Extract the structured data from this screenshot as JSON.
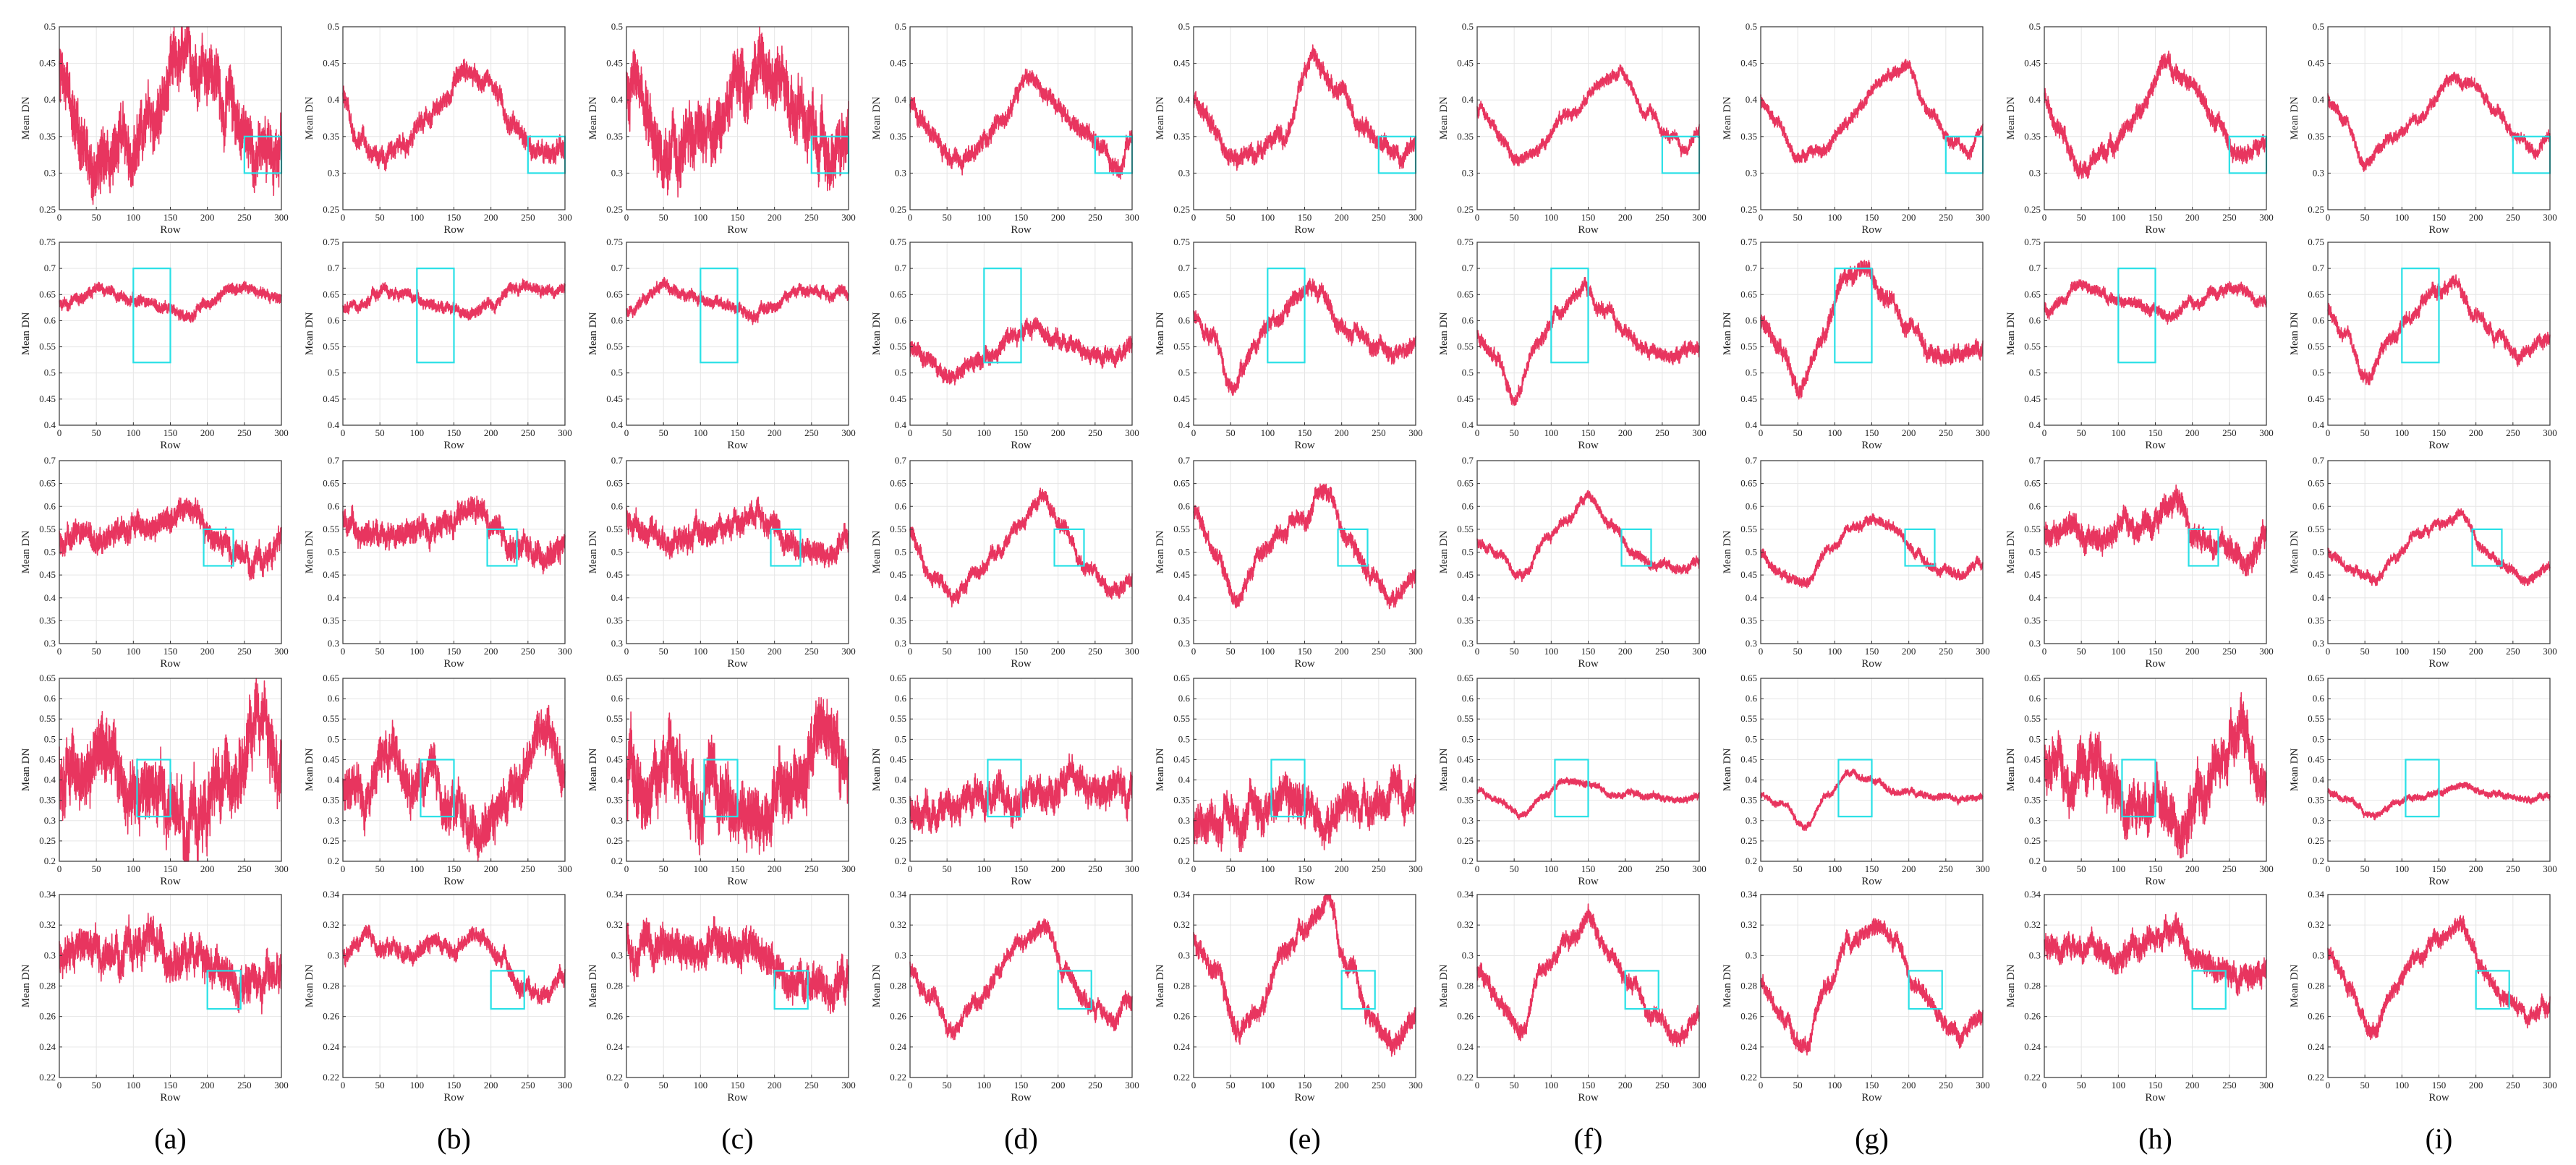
{
  "figure": {
    "columns": [
      "(a)",
      "(b)",
      "(c)",
      "(d)",
      "(e)",
      "(f)",
      "(g)",
      "(h)",
      "(i)"
    ],
    "line_color": "#e8355f",
    "box_color": "#29e0e6"
  },
  "chart_data": {
    "type": "line",
    "xlabel": "Row",
    "ylabel": "Mean DN",
    "xlim": [
      0,
      300
    ],
    "xticks": [
      0,
      50,
      100,
      150,
      200,
      250,
      300
    ],
    "grid": true,
    "rows": [
      {
        "ylim": [
          0.25,
          0.5
        ],
        "yticks": [
          0.25,
          0.3,
          0.35,
          0.4,
          0.45,
          0.5
        ],
        "box": {
          "x": [
            250,
            300
          ],
          "y": [
            0.3,
            0.35
          ]
        },
        "key_x": [
          0,
          20,
          50,
          80,
          120,
          165,
          195,
          230,
          260,
          280,
          300
        ],
        "base": [
          [
            0.43,
            0.37,
            0.31,
            0.33,
            0.36,
            0.44,
            0.46,
            0.39,
            0.34,
            0.32,
            0.34
          ],
          [
            0.4,
            0.35,
            0.31,
            0.34,
            0.38,
            0.44,
            0.43,
            0.37,
            0.33,
            0.32,
            0.34
          ],
          [
            0.41,
            0.37,
            0.31,
            0.33,
            0.37,
            0.44,
            0.46,
            0.39,
            0.34,
            0.32,
            0.34
          ],
          [
            0.39,
            0.37,
            0.33,
            0.32,
            0.37,
            0.43,
            0.4,
            0.36,
            0.33,
            0.31,
            0.35
          ],
          [
            0.4,
            0.37,
            0.32,
            0.33,
            0.35,
            0.46,
            0.42,
            0.36,
            0.33,
            0.32,
            0.35
          ],
          [
            0.39,
            0.37,
            0.32,
            0.33,
            0.38,
            0.42,
            0.44,
            0.38,
            0.35,
            0.33,
            0.36
          ],
          [
            0.4,
            0.37,
            0.32,
            0.33,
            0.37,
            0.43,
            0.45,
            0.38,
            0.34,
            0.33,
            0.36
          ],
          [
            0.4,
            0.37,
            0.3,
            0.33,
            0.37,
            0.45,
            0.43,
            0.37,
            0.33,
            0.32,
            0.35
          ],
          [
            0.4,
            0.38,
            0.31,
            0.35,
            0.37,
            0.43,
            0.42,
            0.38,
            0.35,
            0.33,
            0.35
          ]
        ],
        "noise": [
          0.03,
          0.01,
          0.03,
          0.009,
          0.009,
          0.006,
          0.006,
          0.009,
          0.006
        ]
      },
      {
        "ylim": [
          0.4,
          0.75
        ],
        "yticks": [
          0.4,
          0.45,
          0.5,
          0.55,
          0.6,
          0.65,
          0.7,
          0.75
        ],
        "box": {
          "x": [
            100,
            150
          ],
          "y": [
            0.52,
            0.7
          ]
        },
        "key_x": [
          0,
          25,
          50,
          80,
          110,
          140,
          170,
          200,
          230,
          260,
          300
        ],
        "base": [
          [
            0.63,
            0.64,
            0.66,
            0.65,
            0.64,
            0.63,
            0.61,
            0.63,
            0.66,
            0.66,
            0.64
          ],
          [
            0.62,
            0.63,
            0.66,
            0.65,
            0.64,
            0.62,
            0.61,
            0.63,
            0.66,
            0.66,
            0.65
          ],
          [
            0.62,
            0.64,
            0.67,
            0.65,
            0.64,
            0.63,
            0.61,
            0.63,
            0.66,
            0.66,
            0.65
          ],
          [
            0.55,
            0.53,
            0.49,
            0.51,
            0.54,
            0.57,
            0.59,
            0.56,
            0.55,
            0.53,
            0.54
          ],
          [
            0.61,
            0.57,
            0.47,
            0.55,
            0.6,
            0.65,
            0.66,
            0.59,
            0.57,
            0.54,
            0.55
          ],
          [
            0.57,
            0.53,
            0.46,
            0.55,
            0.62,
            0.66,
            0.62,
            0.58,
            0.54,
            0.53,
            0.55
          ],
          [
            0.6,
            0.55,
            0.46,
            0.56,
            0.68,
            0.7,
            0.64,
            0.59,
            0.55,
            0.53,
            0.55
          ],
          [
            0.62,
            0.64,
            0.67,
            0.65,
            0.64,
            0.62,
            0.61,
            0.63,
            0.66,
            0.66,
            0.64
          ],
          [
            0.62,
            0.57,
            0.49,
            0.56,
            0.6,
            0.65,
            0.68,
            0.61,
            0.57,
            0.53,
            0.57
          ]
        ],
        "noise": [
          0.008,
          0.008,
          0.008,
          0.012,
          0.012,
          0.01,
          0.012,
          0.008,
          0.01
        ]
      },
      {
        "ylim": [
          0.3,
          0.7
        ],
        "yticks": [
          0.3,
          0.35,
          0.4,
          0.45,
          0.5,
          0.55,
          0.6,
          0.65,
          0.7
        ],
        "box": {
          "x": [
            195,
            235
          ],
          "y": [
            0.47,
            0.55
          ]
        },
        "key_x": [
          0,
          30,
          60,
          90,
          120,
          150,
          180,
          210,
          240,
          270,
          300
        ],
        "base": [
          [
            0.53,
            0.55,
            0.53,
            0.56,
            0.55,
            0.57,
            0.6,
            0.52,
            0.5,
            0.48,
            0.52
          ],
          [
            0.57,
            0.55,
            0.52,
            0.54,
            0.55,
            0.56,
            0.6,
            0.53,
            0.51,
            0.49,
            0.52
          ],
          [
            0.57,
            0.55,
            0.52,
            0.54,
            0.55,
            0.57,
            0.6,
            0.53,
            0.51,
            0.49,
            0.52
          ],
          [
            0.54,
            0.45,
            0.4,
            0.46,
            0.5,
            0.57,
            0.62,
            0.54,
            0.46,
            0.42,
            0.44
          ],
          [
            0.58,
            0.5,
            0.39,
            0.5,
            0.55,
            0.58,
            0.64,
            0.52,
            0.45,
            0.41,
            0.44
          ],
          [
            0.52,
            0.5,
            0.44,
            0.52,
            0.57,
            0.62,
            0.56,
            0.5,
            0.47,
            0.46,
            0.48
          ],
          [
            0.5,
            0.45,
            0.43,
            0.5,
            0.55,
            0.58,
            0.55,
            0.5,
            0.46,
            0.45,
            0.48
          ],
          [
            0.54,
            0.56,
            0.52,
            0.54,
            0.56,
            0.58,
            0.61,
            0.54,
            0.51,
            0.49,
            0.53
          ],
          [
            0.5,
            0.46,
            0.44,
            0.49,
            0.54,
            0.56,
            0.58,
            0.51,
            0.47,
            0.44,
            0.47
          ]
        ],
        "noise": [
          0.02,
          0.02,
          0.02,
          0.012,
          0.014,
          0.008,
          0.008,
          0.02,
          0.008
        ]
      },
      {
        "ylim": [
          0.2,
          0.65
        ],
        "yticks": [
          0.2,
          0.25,
          0.3,
          0.35,
          0.4,
          0.45,
          0.5,
          0.55,
          0.6,
          0.65
        ],
        "box": {
          "x": [
            105,
            150
          ],
          "y": [
            0.31,
            0.45
          ]
        },
        "key_x": [
          0,
          30,
          60,
          90,
          120,
          150,
          180,
          210,
          240,
          270,
          300
        ],
        "base": [
          [
            0.42,
            0.4,
            0.48,
            0.38,
            0.36,
            0.34,
            0.3,
            0.36,
            0.44,
            0.52,
            0.4
          ],
          [
            0.38,
            0.36,
            0.46,
            0.38,
            0.39,
            0.33,
            0.27,
            0.33,
            0.42,
            0.54,
            0.42
          ],
          [
            0.4,
            0.38,
            0.48,
            0.39,
            0.38,
            0.34,
            0.29,
            0.35,
            0.45,
            0.52,
            0.42
          ],
          [
            0.33,
            0.31,
            0.35,
            0.36,
            0.35,
            0.34,
            0.37,
            0.4,
            0.39,
            0.38,
            0.37
          ],
          [
            0.3,
            0.31,
            0.31,
            0.33,
            0.36,
            0.34,
            0.32,
            0.34,
            0.35,
            0.36,
            0.35
          ],
          [
            0.37,
            0.35,
            0.31,
            0.36,
            0.4,
            0.39,
            0.36,
            0.37,
            0.36,
            0.35,
            0.36
          ],
          [
            0.36,
            0.34,
            0.29,
            0.36,
            0.42,
            0.4,
            0.37,
            0.37,
            0.36,
            0.35,
            0.36
          ],
          [
            0.42,
            0.4,
            0.48,
            0.38,
            0.36,
            0.34,
            0.3,
            0.36,
            0.44,
            0.52,
            0.4
          ],
          [
            0.37,
            0.35,
            0.31,
            0.34,
            0.36,
            0.37,
            0.39,
            0.37,
            0.36,
            0.35,
            0.36
          ]
        ],
        "noise": [
          0.06,
          0.04,
          0.06,
          0.03,
          0.035,
          0.006,
          0.006,
          0.045,
          0.006
        ]
      },
      {
        "ylim": [
          0.22,
          0.34
        ],
        "yticks": [
          0.22,
          0.24,
          0.26,
          0.28,
          0.3,
          0.32,
          0.34
        ],
        "box": {
          "x": [
            200,
            245
          ],
          "y": [
            0.265,
            0.29
          ]
        },
        "key_x": [
          0,
          30,
          60,
          90,
          120,
          150,
          180,
          210,
          240,
          270,
          300
        ],
        "base": [
          [
            0.3,
            0.305,
            0.3,
            0.305,
            0.31,
            0.3,
            0.295,
            0.29,
            0.28,
            0.28,
            0.285
          ],
          [
            0.3,
            0.31,
            0.305,
            0.3,
            0.31,
            0.305,
            0.315,
            0.3,
            0.28,
            0.275,
            0.29
          ],
          [
            0.31,
            0.305,
            0.31,
            0.3,
            0.305,
            0.31,
            0.3,
            0.29,
            0.28,
            0.28,
            0.285
          ],
          [
            0.29,
            0.27,
            0.25,
            0.27,
            0.29,
            0.31,
            0.32,
            0.29,
            0.27,
            0.26,
            0.27
          ],
          [
            0.31,
            0.29,
            0.25,
            0.27,
            0.3,
            0.32,
            0.335,
            0.29,
            0.26,
            0.24,
            0.26
          ],
          [
            0.29,
            0.27,
            0.25,
            0.29,
            0.31,
            0.325,
            0.3,
            0.28,
            0.26,
            0.25,
            0.26
          ],
          [
            0.28,
            0.26,
            0.24,
            0.28,
            0.31,
            0.32,
            0.31,
            0.28,
            0.26,
            0.25,
            0.26
          ],
          [
            0.305,
            0.31,
            0.305,
            0.3,
            0.305,
            0.31,
            0.315,
            0.3,
            0.29,
            0.285,
            0.29
          ],
          [
            0.3,
            0.28,
            0.25,
            0.28,
            0.3,
            0.31,
            0.32,
            0.29,
            0.27,
            0.26,
            0.27
          ]
        ],
        "noise": [
          0.009,
          0.004,
          0.009,
          0.004,
          0.005,
          0.004,
          0.004,
          0.006,
          0.004
        ]
      }
    ]
  }
}
